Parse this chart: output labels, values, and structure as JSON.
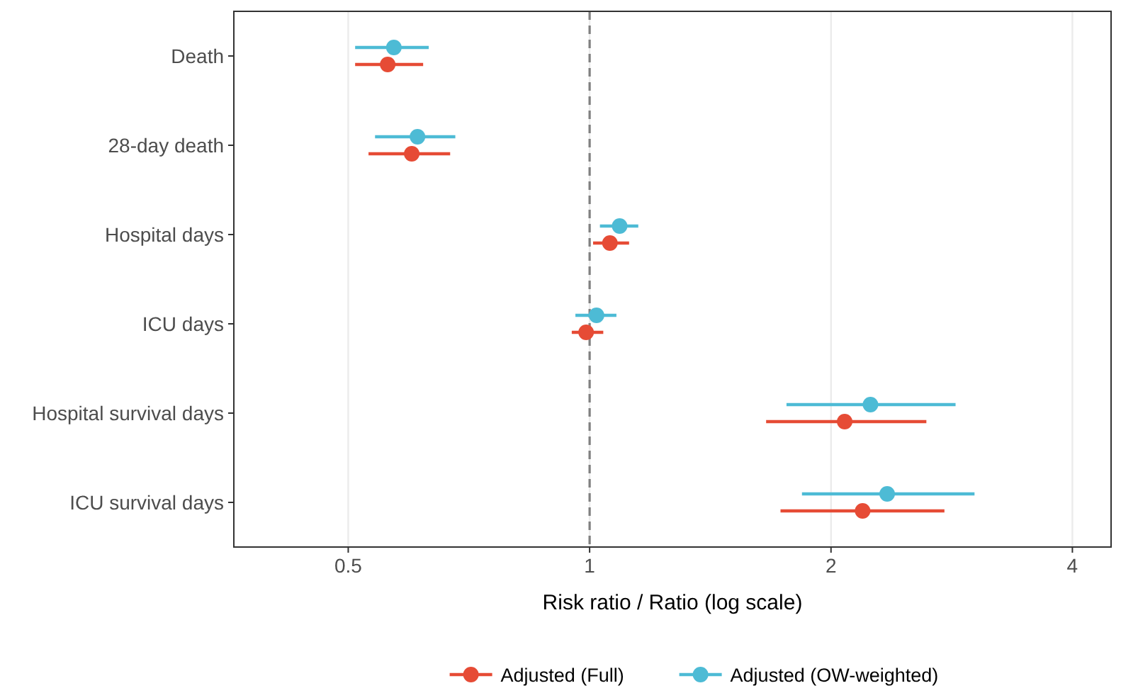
{
  "chart_data": {
    "type": "scatter",
    "orientation": "horizontal",
    "categories": [
      "Death",
      "28-day death",
      "Hospital days",
      "ICU days",
      "Hospital survival days",
      "ICU survival days"
    ],
    "series": [
      {
        "name": "Adjusted (Full)",
        "color": "#e64b35",
        "values": [
          0.56,
          0.6,
          1.06,
          0.99,
          2.08,
          2.19
        ],
        "errors": [
          [
            0.51,
            0.62
          ],
          [
            0.53,
            0.67
          ],
          [
            1.01,
            1.12
          ],
          [
            0.95,
            1.04
          ],
          [
            1.66,
            2.63
          ],
          [
            1.73,
            2.77
          ]
        ]
      },
      {
        "name": "Adjusted (OW-weighted)",
        "color": "#4dbbd5",
        "values": [
          0.57,
          0.61,
          1.09,
          1.02,
          2.24,
          2.35
        ],
        "errors": [
          [
            0.51,
            0.63
          ],
          [
            0.54,
            0.68
          ],
          [
            1.03,
            1.15
          ],
          [
            0.96,
            1.08
          ],
          [
            1.76,
            2.86
          ],
          [
            1.84,
            3.02
          ]
        ]
      }
    ],
    "xlim": [
      0.36,
      4.47
    ],
    "xticks": [
      0.5,
      1,
      2,
      4
    ],
    "log": "x",
    "xlabel": "Risk ratio / Ratio (log scale)",
    "grid": "x",
    "legend": "bottom",
    "marker": "circle",
    "ref_lines": [
      {
        "axis": "x",
        "value": 1,
        "label": null,
        "color": "#808080",
        "line_style": "dashed"
      }
    ]
  }
}
